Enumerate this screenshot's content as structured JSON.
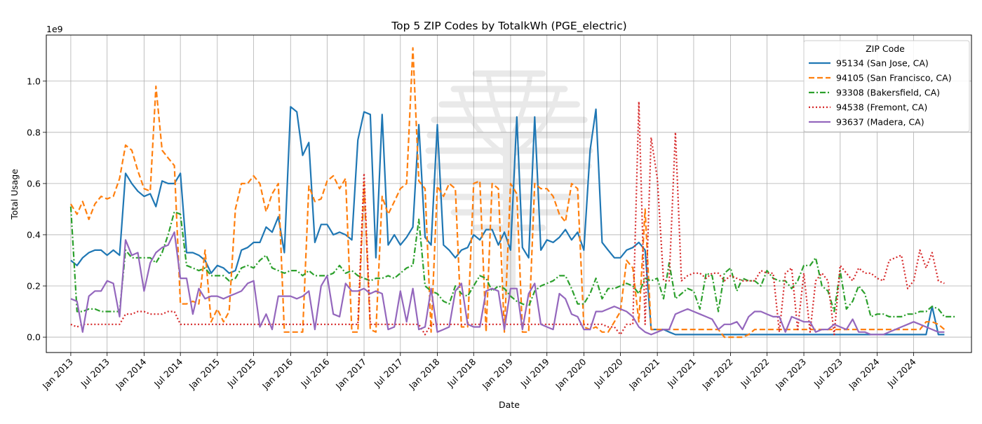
{
  "chart_data": {
    "type": "line",
    "title": "Top 5 ZIP Codes by TotalkWh (PGE_electric)",
    "xlabel": "Date",
    "ylabel": "Total Usage",
    "y_offset_label": "1e9",
    "ylim": [
      -0.06,
      1.18
    ],
    "xlim": [
      "2012-09-01",
      "2025-04-15"
    ],
    "x_ticks": [
      "2013-01-01",
      "2013-07-01",
      "2014-01-01",
      "2014-07-01",
      "2015-01-01",
      "2015-07-01",
      "2016-01-01",
      "2016-07-01",
      "2017-01-01",
      "2017-07-01",
      "2018-01-01",
      "2018-07-01",
      "2019-01-01",
      "2019-07-01",
      "2020-01-01",
      "2020-07-01",
      "2021-01-01",
      "2021-07-01",
      "2022-01-01",
      "2022-07-01",
      "2023-01-01",
      "2023-07-01",
      "2024-01-01",
      "2024-07-01"
    ],
    "x_tick_labels": [
      "Jan 2013",
      "Jul 2013",
      "Jan 2014",
      "Jul 2014",
      "Jan 2015",
      "Jul 2015",
      "Jan 2016",
      "Jul 2016",
      "Jan 2017",
      "Jul 2017",
      "Jan 2018",
      "Jul 2018",
      "Jan 2019",
      "Jul 2019",
      "Jan 2020",
      "Jul 2020",
      "Jan 2021",
      "Jul 2021",
      "Jan 2022",
      "Jul 2022",
      "Jan 2023",
      "Jul 2023",
      "Jan 2024",
      "Jul 2024"
    ],
    "y_ticks": [
      0.0,
      0.2,
      0.4,
      0.6,
      0.8,
      1.0
    ],
    "y_tick_labels": [
      "0.0",
      "0.2",
      "0.4",
      "0.6",
      "0.8",
      "1.0"
    ],
    "grid": true,
    "legend": {
      "title": "ZIP Code",
      "placement": "top-right"
    },
    "x_start": "2013-01",
    "x_end": "2024-12",
    "series": [
      {
        "name": "95134 (San Jose, CA)",
        "color": "#1f77b4",
        "dash": "solid",
        "values": [
          0.3,
          0.28,
          0.31,
          0.33,
          0.34,
          0.34,
          0.32,
          0.34,
          0.32,
          0.64,
          0.6,
          0.57,
          0.55,
          0.56,
          0.51,
          0.61,
          0.6,
          0.6,
          0.64,
          0.33,
          0.33,
          0.32,
          0.3,
          0.25,
          0.28,
          0.27,
          0.25,
          0.26,
          0.34,
          0.35,
          0.37,
          0.37,
          0.43,
          0.41,
          0.47,
          0.33,
          0.9,
          0.88,
          0.71,
          0.76,
          0.37,
          0.44,
          0.44,
          0.4,
          0.41,
          0.4,
          0.38,
          0.77,
          0.88,
          0.87,
          0.31,
          0.87,
          0.36,
          0.4,
          0.36,
          0.39,
          0.43,
          0.83,
          0.39,
          0.36,
          0.83,
          0.36,
          0.34,
          0.31,
          0.34,
          0.35,
          0.4,
          0.38,
          0.42,
          0.42,
          0.36,
          0.41,
          0.34,
          0.86,
          0.35,
          0.31,
          0.86,
          0.34,
          0.38,
          0.37,
          0.39,
          0.42,
          0.38,
          0.41,
          0.34,
          0.73,
          0.89,
          0.37,
          0.34,
          0.31,
          0.31,
          0.34,
          0.35,
          0.37,
          0.34,
          0.03,
          0.03,
          0.03,
          0.02,
          0.01,
          0.01,
          0.01,
          0.01,
          0.01,
          0.01,
          0.01,
          0.01,
          0.01,
          0.01,
          0.01,
          0.01,
          0.01,
          0.01,
          0.01,
          0.01,
          0.01,
          0.01,
          0.01,
          0.01,
          0.01,
          0.01,
          0.01,
          0.01,
          0.01,
          0.01,
          0.01,
          0.01,
          0.01,
          0.01,
          0.01,
          0.01,
          0.01,
          0.01,
          0.01,
          0.01,
          0.01,
          0.01,
          0.01,
          0.01,
          0.01,
          0.01,
          0.12,
          0.01,
          0.01
        ]
      },
      {
        "name": "94105 (San Francisco, CA)",
        "color": "#ff7f0e",
        "dash": "dashed",
        "values": [
          0.52,
          0.48,
          0.53,
          0.46,
          0.52,
          0.55,
          0.54,
          0.55,
          0.62,
          0.75,
          0.73,
          0.65,
          0.58,
          0.57,
          0.98,
          0.73,
          0.7,
          0.67,
          0.13,
          0.13,
          0.14,
          0.13,
          0.34,
          0.06,
          0.11,
          0.06,
          0.1,
          0.5,
          0.6,
          0.6,
          0.63,
          0.6,
          0.49,
          0.56,
          0.6,
          0.02,
          0.02,
          0.02,
          0.02,
          0.59,
          0.53,
          0.54,
          0.61,
          0.63,
          0.58,
          0.62,
          0.02,
          0.02,
          0.6,
          0.03,
          0.02,
          0.55,
          0.48,
          0.53,
          0.58,
          0.6,
          1.13,
          0.61,
          0.58,
          0.02,
          0.59,
          0.55,
          0.6,
          0.58,
          0.04,
          0.04,
          0.6,
          0.61,
          0.02,
          0.6,
          0.58,
          0.02,
          0.6,
          0.56,
          0.02,
          0.02,
          0.6,
          0.58,
          0.58,
          0.55,
          0.48,
          0.45,
          0.6,
          0.58,
          0.04,
          0.03,
          0.04,
          0.02,
          0.02,
          0.06,
          0.1,
          0.3,
          0.27,
          0.06,
          0.5,
          0.03,
          0.03,
          0.03,
          0.03,
          0.03,
          0.03,
          0.03,
          0.03,
          0.03,
          0.03,
          0.03,
          0.03,
          0.0,
          0.0,
          0.0,
          0.0,
          0.01,
          0.03,
          0.03,
          0.03,
          0.03,
          0.03,
          0.03,
          0.03,
          0.03,
          0.03,
          0.03,
          0.03,
          0.03,
          0.03,
          0.03,
          0.03,
          0.03,
          0.03,
          0.03,
          0.03,
          0.03,
          0.03,
          0.03,
          0.03,
          0.03,
          0.03,
          0.03,
          0.03,
          0.03,
          0.06,
          0.06,
          0.05,
          0.03
        ]
      },
      {
        "name": "93308 (Bakersfield, CA)",
        "color": "#2ca02c",
        "dash": "dashdot",
        "values": [
          0.51,
          0.1,
          0.1,
          0.11,
          0.11,
          0.1,
          0.1,
          0.1,
          0.1,
          0.34,
          0.31,
          0.31,
          0.31,
          0.31,
          0.29,
          0.33,
          0.4,
          0.49,
          0.48,
          0.28,
          0.27,
          0.26,
          0.27,
          0.24,
          0.24,
          0.24,
          0.22,
          0.23,
          0.27,
          0.28,
          0.27,
          0.3,
          0.32,
          0.27,
          0.26,
          0.25,
          0.26,
          0.26,
          0.24,
          0.26,
          0.24,
          0.24,
          0.24,
          0.25,
          0.28,
          0.25,
          0.26,
          0.24,
          0.23,
          0.22,
          0.23,
          0.23,
          0.24,
          0.23,
          0.25,
          0.27,
          0.28,
          0.46,
          0.2,
          0.18,
          0.17,
          0.14,
          0.13,
          0.2,
          0.17,
          0.16,
          0.2,
          0.24,
          0.23,
          0.18,
          0.2,
          0.19,
          0.16,
          0.14,
          0.13,
          0.12,
          0.18,
          0.2,
          0.21,
          0.22,
          0.24,
          0.24,
          0.19,
          0.13,
          0.13,
          0.17,
          0.23,
          0.15,
          0.19,
          0.19,
          0.2,
          0.21,
          0.2,
          0.17,
          0.23,
          0.22,
          0.23,
          0.15,
          0.29,
          0.15,
          0.17,
          0.19,
          0.18,
          0.11,
          0.25,
          0.24,
          0.1,
          0.25,
          0.27,
          0.18,
          0.23,
          0.22,
          0.22,
          0.2,
          0.26,
          0.23,
          0.22,
          0.22,
          0.19,
          0.22,
          0.28,
          0.28,
          0.31,
          0.2,
          0.18,
          0.1,
          0.26,
          0.11,
          0.14,
          0.2,
          0.17,
          0.08,
          0.09,
          0.09,
          0.08,
          0.08,
          0.08,
          0.09,
          0.09,
          0.1,
          0.1,
          0.12,
          0.11,
          0.08,
          0.08,
          0.08
        ]
      },
      {
        "name": "94538 (Fremont, CA)",
        "color": "#d62728",
        "dash": "dotted",
        "values": [
          0.05,
          0.04,
          0.05,
          0.05,
          0.05,
          0.05,
          0.05,
          0.05,
          0.05,
          0.09,
          0.09,
          0.1,
          0.1,
          0.09,
          0.09,
          0.09,
          0.1,
          0.1,
          0.05,
          0.05,
          0.05,
          0.05,
          0.05,
          0.05,
          0.05,
          0.05,
          0.05,
          0.05,
          0.05,
          0.05,
          0.05,
          0.05,
          0.05,
          0.05,
          0.05,
          0.05,
          0.05,
          0.05,
          0.05,
          0.05,
          0.05,
          0.05,
          0.05,
          0.05,
          0.05,
          0.05,
          0.05,
          0.05,
          0.64,
          0.05,
          0.05,
          0.05,
          0.05,
          0.05,
          0.05,
          0.05,
          0.05,
          0.05,
          0.01,
          0.05,
          0.05,
          0.05,
          0.05,
          0.05,
          0.05,
          0.05,
          0.05,
          0.05,
          0.05,
          0.05,
          0.05,
          0.05,
          0.05,
          0.05,
          0.05,
          0.05,
          0.05,
          0.05,
          0.05,
          0.05,
          0.05,
          0.05,
          0.05,
          0.05,
          0.05,
          0.05,
          0.05,
          0.05,
          0.04,
          0.04,
          0.01,
          0.05,
          0.05,
          0.92,
          0.05,
          0.78,
          0.62,
          0.22,
          0.22,
          0.8,
          0.22,
          0.24,
          0.25,
          0.25,
          0.23,
          0.25,
          0.25,
          0.22,
          0.24,
          0.23,
          0.22,
          0.22,
          0.22,
          0.26,
          0.25,
          0.25,
          0.02,
          0.25,
          0.27,
          0.03,
          0.25,
          0.02,
          0.22,
          0.25,
          0.22,
          0.01,
          0.28,
          0.25,
          0.22,
          0.27,
          0.25,
          0.25,
          0.23,
          0.22,
          0.3,
          0.31,
          0.32,
          0.19,
          0.22,
          0.34,
          0.27,
          0.33,
          0.22,
          0.21
        ]
      },
      {
        "name": "93637 (Madera, CA)",
        "color": "#9467bd",
        "dash": "solid",
        "values": [
          0.15,
          0.14,
          0.02,
          0.16,
          0.18,
          0.18,
          0.22,
          0.21,
          0.08,
          0.38,
          0.32,
          0.33,
          0.18,
          0.29,
          0.33,
          0.35,
          0.36,
          0.41,
          0.23,
          0.23,
          0.09,
          0.19,
          0.15,
          0.16,
          0.16,
          0.15,
          0.16,
          0.17,
          0.18,
          0.21,
          0.22,
          0.04,
          0.09,
          0.03,
          0.16,
          0.16,
          0.16,
          0.15,
          0.16,
          0.18,
          0.03,
          0.2,
          0.24,
          0.09,
          0.08,
          0.21,
          0.18,
          0.18,
          0.19,
          0.17,
          0.18,
          0.17,
          0.03,
          0.04,
          0.18,
          0.06,
          0.19,
          0.03,
          0.04,
          0.19,
          0.02,
          0.03,
          0.04,
          0.18,
          0.21,
          0.05,
          0.04,
          0.04,
          0.18,
          0.19,
          0.18,
          0.03,
          0.19,
          0.19,
          0.03,
          0.17,
          0.21,
          0.05,
          0.04,
          0.03,
          0.17,
          0.15,
          0.09,
          0.08,
          0.03,
          0.03,
          0.1,
          0.1,
          0.11,
          0.12,
          0.11,
          0.1,
          0.08,
          0.04,
          0.02,
          0.01,
          0.02,
          0.03,
          0.03,
          0.09,
          0.1,
          0.11,
          0.1,
          0.09,
          0.08,
          0.07,
          0.03,
          0.05,
          0.05,
          0.06,
          0.03,
          0.08,
          0.1,
          0.1,
          0.09,
          0.08,
          0.08,
          0.02,
          0.08,
          0.07,
          0.06,
          0.06,
          0.02,
          0.03,
          0.03,
          0.05,
          0.04,
          0.03,
          0.07,
          0.02,
          0.02,
          0.01,
          0.01,
          0.01,
          0.02,
          0.03,
          0.04,
          0.05,
          0.06,
          0.05,
          0.04,
          0.03,
          0.02,
          0.02
        ]
      }
    ]
  }
}
